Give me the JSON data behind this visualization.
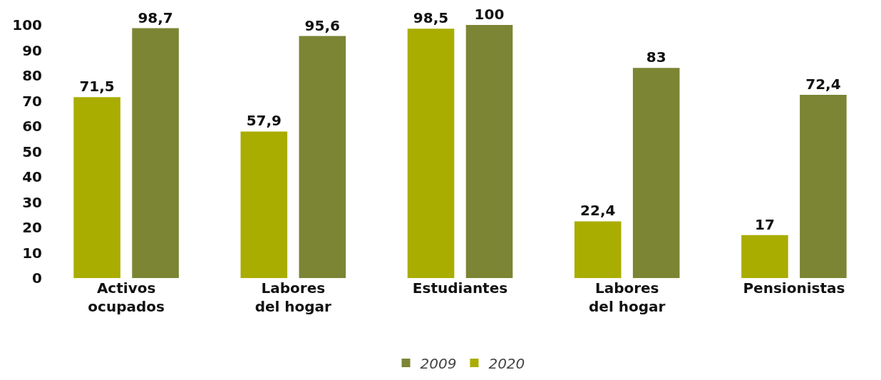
{
  "chart_data": {
    "type": "bar",
    "categories": [
      "Activos ocupados",
      "Labores del hogar",
      "Estudiantes",
      "Labores del hogar",
      "Pensionistas"
    ],
    "series": [
      {
        "name": "2020",
        "color": "#a9ad00",
        "values": [
          71.5,
          57.9,
          98.5,
          22.4,
          17
        ],
        "value_labels": [
          "71,5",
          "57,9",
          "98,5",
          "22,4",
          "17"
        ]
      },
      {
        "name": "2009",
        "color": "#7b8534",
        "values": [
          98.7,
          95.6,
          100,
          83,
          72.4
        ],
        "value_labels": [
          "98,7",
          "95,6",
          "100",
          "83",
          "72,4"
        ]
      }
    ],
    "ylim": [
      0,
      100
    ],
    "yticks": [
      0,
      10,
      20,
      30,
      40,
      50,
      60,
      70,
      80,
      90,
      100
    ],
    "grid": false,
    "legend": "bottom"
  }
}
